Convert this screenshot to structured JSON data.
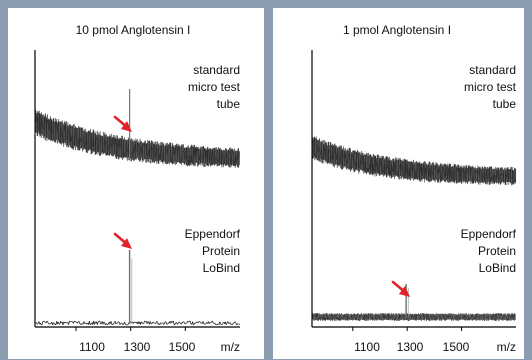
{
  "chart_data": [
    {
      "type": "line",
      "title": "10 pmol Anglotensin I",
      "xlabel": "m/z",
      "xticks": [
        1100,
        1300,
        1500
      ],
      "xlim": [
        950,
        1700
      ],
      "series": [
        {
          "name": "standard micro test tube",
          "label_lines": [
            "standard",
            "micro test",
            "tube"
          ],
          "peak_marked": true,
          "peak_x": 1296,
          "baseline_profile": "decaying high noise",
          "noise_level": "high",
          "peak_height_relative": 0.84
        },
        {
          "name": "Eppendorf Protein LoBind",
          "label_lines": [
            "Eppendorf",
            "Protein",
            "LoBind"
          ],
          "peak_marked": true,
          "peak_x": 1296,
          "baseline_profile": "flat low noise",
          "noise_level": "low",
          "peak_height_relative": 0.83
        }
      ]
    },
    {
      "type": "line",
      "title": "1 pmol Anglotensin I",
      "xlabel": "m/z",
      "xticks": [
        1100,
        1300,
        1500
      ],
      "xlim": [
        950,
        1700
      ],
      "series": [
        {
          "name": "standard micro test tube",
          "label_lines": [
            "standard",
            "micro test",
            "tube"
          ],
          "peak_marked": false,
          "baseline_profile": "decaying high noise",
          "noise_level": "high"
        },
        {
          "name": "Eppendorf Protein LoBind",
          "label_lines": [
            "Eppendorf",
            "Protein",
            "LoBind"
          ],
          "peak_marked": true,
          "peak_x": 1296,
          "baseline_profile": "flat moderate noise",
          "noise_level": "moderate",
          "peak_height_relative": 0.42
        }
      ]
    }
  ],
  "colors": {
    "background": "#8c9db2",
    "panel": "#ffffff",
    "trace": "#1f1f1f",
    "arrow": "#e0232b"
  }
}
